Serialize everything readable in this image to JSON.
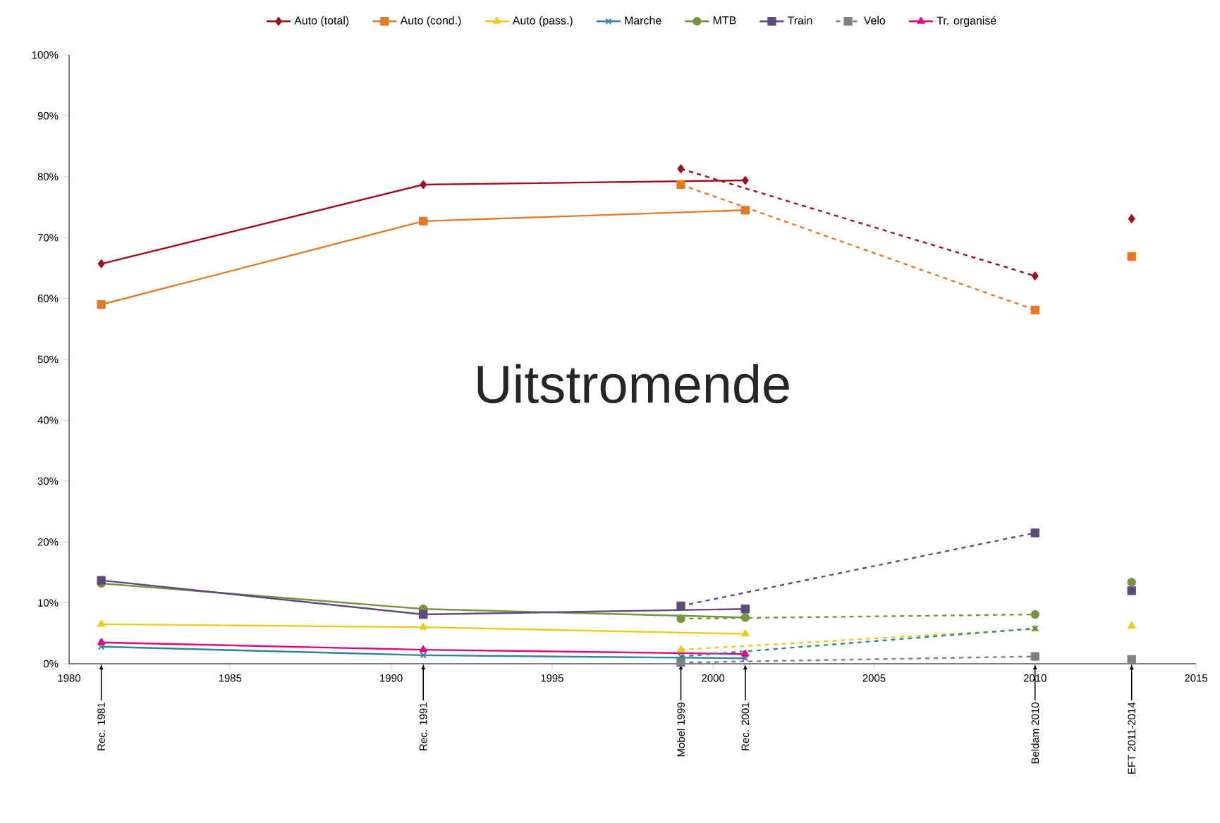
{
  "chart_data": {
    "type": "line",
    "xlim": [
      1980,
      2015
    ],
    "xticks": [
      1980,
      1985,
      1990,
      1995,
      2000,
      2005,
      2010,
      2015
    ],
    "ylim": [
      0,
      100
    ],
    "yticks": [
      {
        "value": 0,
        "label": "0%"
      },
      {
        "value": 10,
        "label": "10%"
      },
      {
        "value": 20,
        "label": "20%"
      },
      {
        "value": 30,
        "label": "30%"
      },
      {
        "value": 40,
        "label": "40%"
      },
      {
        "value": 50,
        "label": "50%"
      },
      {
        "value": 60,
        "label": "60%"
      },
      {
        "value": 70,
        "label": "70%"
      },
      {
        "value": 80,
        "label": "80%"
      },
      {
        "value": 90,
        "label": "90%"
      },
      {
        "value": 100,
        "label": "100%"
      }
    ],
    "grid": false,
    "legend": "top",
    "series": [
      {
        "name": "Auto (total)",
        "color": "#9b111e",
        "marker": "diamond",
        "line_style": "solid",
        "x": [
          1981,
          1991,
          2001
        ],
        "values": [
          65.7,
          78.7,
          79.4
        ]
      },
      {
        "name": "Auto (cond.)",
        "color": "#e07b2a",
        "marker": "square",
        "line_style": "solid",
        "x": [
          1981,
          1991,
          2001
        ],
        "values": [
          59.0,
          72.7,
          74.5
        ]
      },
      {
        "name": "Auto (pass.)",
        "color": "#f2c81a",
        "marker": "triangle",
        "line_style": "solid",
        "x": [
          1981,
          1991,
          2001
        ],
        "values": [
          6.5,
          6.0,
          4.9
        ]
      },
      {
        "name": "Marche",
        "color": "#31849b",
        "marker": "cross",
        "line_style": "solid",
        "x": [
          1981,
          1991,
          2001
        ],
        "values": [
          2.8,
          1.4,
          0.9
        ]
      },
      {
        "name": "MTB",
        "color": "#77933c",
        "marker": "circle",
        "line_style": "solid",
        "x": [
          1981,
          1991,
          2001
        ],
        "values": [
          13.2,
          9.0,
          7.6
        ]
      },
      {
        "name": "Train",
        "color": "#604a7b",
        "marker": "square",
        "line_style": "solid",
        "x": [
          1981,
          1991,
          2001
        ],
        "values": [
          13.7,
          8.1,
          9.0
        ]
      },
      {
        "name": "Velo",
        "color": "#808080",
        "marker": "square",
        "line_style": "dashed",
        "x": [
          1999,
          2010
        ],
        "values": [
          0.2,
          1.2
        ]
      },
      {
        "name": "Tr. organisé",
        "color": "#e6007e",
        "marker": "triangle",
        "line_style": "solid",
        "x": [
          1981,
          1991,
          2001
        ],
        "values": [
          3.5,
          2.3,
          1.6
        ]
      },
      {
        "color": "#9b111e",
        "marker": "diamond",
        "line_style": "dashed",
        "x": [
          1999,
          2010
        ],
        "values": [
          81.3,
          63.7
        ]
      },
      {
        "color": "#e87722",
        "marker": "square",
        "line_style": "dashed",
        "x": [
          1999,
          2010
        ],
        "values": [
          78.7,
          58.1
        ]
      },
      {
        "color": "#f2c81a",
        "marker": "triangle",
        "line_style": "dashed",
        "x": [
          1999,
          2010
        ],
        "values": [
          2.3,
          5.7
        ]
      },
      {
        "color": "#31849b",
        "marker": "cross",
        "line_style": "dashed",
        "x": [
          1999,
          2010
        ],
        "values": [
          1.2,
          5.8
        ]
      },
      {
        "color": "#77933c",
        "marker": "circle",
        "line_style": "dashed",
        "x": [
          1999,
          2010
        ],
        "values": [
          7.4,
          8.1
        ]
      },
      {
        "color": "#604a7b",
        "marker": "square",
        "line_style": "dashed",
        "x": [
          1999,
          2010
        ],
        "values": [
          9.5,
          21.5
        ]
      },
      {
        "type": "scatter",
        "color": "#9b111e",
        "marker": "diamond",
        "x": [
          2013
        ],
        "values": [
          73.1
        ]
      },
      {
        "type": "scatter",
        "color": "#e87722",
        "marker": "square",
        "x": [
          2013
        ],
        "values": [
          66.9
        ]
      },
      {
        "type": "scatter",
        "color": "#f2c81a",
        "marker": "triangle",
        "x": [
          2013
        ],
        "values": [
          6.2
        ]
      },
      {
        "type": "scatter",
        "color": "#77933c",
        "marker": "circle",
        "x": [
          2013
        ],
        "values": [
          13.4
        ]
      },
      {
        "type": "scatter",
        "color": "#604a7b",
        "marker": "square",
        "x": [
          2013
        ],
        "values": [
          12.0
        ]
      },
      {
        "type": "scatter",
        "color": "#808080",
        "marker": "square",
        "x": [
          2013
        ],
        "values": [
          0.7
        ]
      }
    ],
    "annotations": [
      "Uitstromende",
      {
        "text": "Rec. 1981",
        "x": 1981
      },
      {
        "text": "Rec. 1991",
        "x": 1991
      },
      {
        "text": "Mobel 1999",
        "x": 1999
      },
      {
        "text": "Rec. 2001",
        "x": 2001
      },
      {
        "text": "Beldam 2010",
        "x": 2010
      },
      {
        "text": "EFT 2011-2014",
        "x": 2013
      }
    ]
  }
}
